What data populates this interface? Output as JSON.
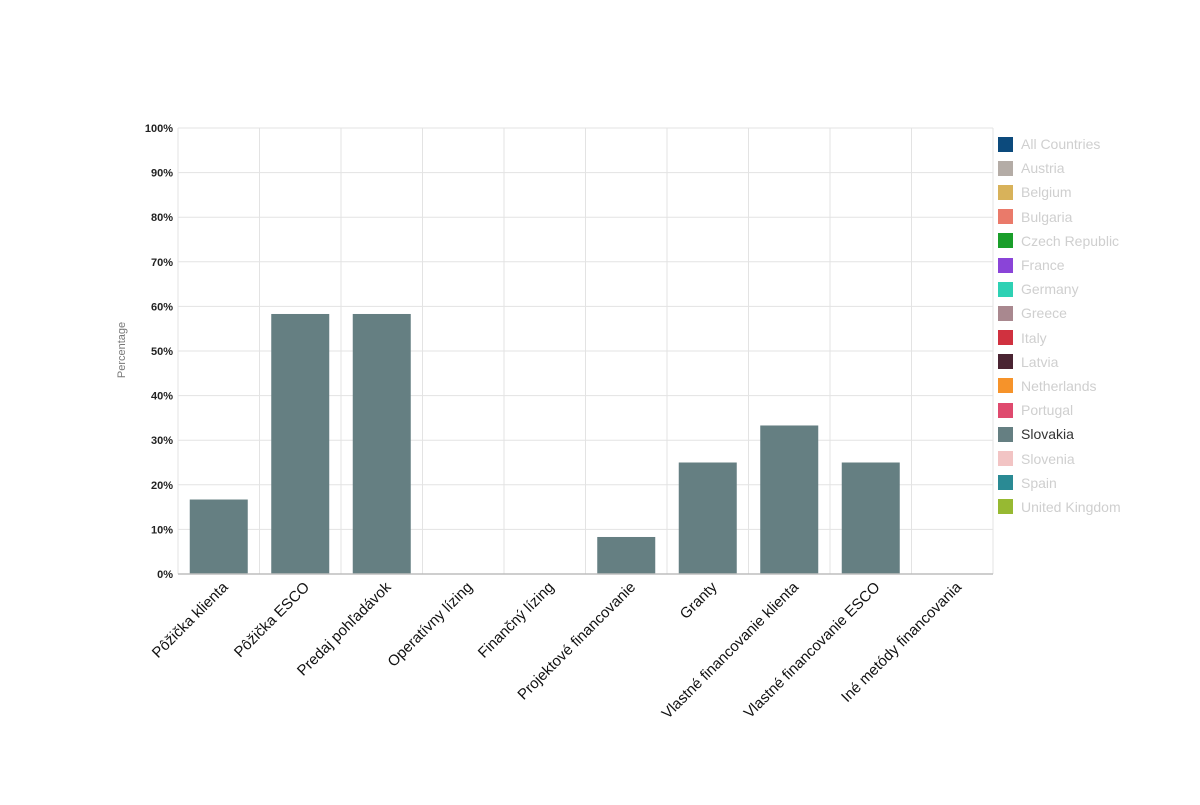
{
  "chart_data": {
    "type": "bar",
    "ylabel": "Percentage",
    "ylim": [
      0,
      100
    ],
    "y_ticks": [
      "0%",
      "10%",
      "20%",
      "30%",
      "40%",
      "50%",
      "60%",
      "70%",
      "80%",
      "90%",
      "100%"
    ],
    "grid": true,
    "legend_position": "right",
    "categories": [
      "Pôžička klienta",
      "Pôžička ESCO",
      "Predaj pohľadávok",
      "Operatívny lízing",
      "Finančný lízing",
      "Projektové financovanie",
      "Granty",
      "Vlastné financovanie klienta",
      "Vlastné financovanie ESCO",
      "Iné metódy financovania"
    ],
    "series": [
      {
        "name": "Slovakia",
        "color": "#657f82",
        "values": [
          16.7,
          58.3,
          58.3,
          0,
          0,
          8.3,
          25,
          33.3,
          25,
          0
        ]
      }
    ],
    "legend": [
      {
        "name": "All Countries",
        "color": "#0c4a7c",
        "active": false
      },
      {
        "name": "Austria",
        "color": "#b4aca6",
        "active": false
      },
      {
        "name": "Belgium",
        "color": "#d8b25a",
        "active": false
      },
      {
        "name": "Bulgaria",
        "color": "#ea7a6a",
        "active": false
      },
      {
        "name": "Czech Republic",
        "color": "#1a9e2a",
        "active": false
      },
      {
        "name": "France",
        "color": "#8a44d8",
        "active": false
      },
      {
        "name": "Germany",
        "color": "#2ed1b4",
        "active": false
      },
      {
        "name": "Greece",
        "color": "#a9888f",
        "active": false
      },
      {
        "name": "Italy",
        "color": "#d0313f",
        "active": false
      },
      {
        "name": "Latvia",
        "color": "#4a2432",
        "active": false
      },
      {
        "name": "Netherlands",
        "color": "#f6932a",
        "active": false
      },
      {
        "name": "Portugal",
        "color": "#df4a6e",
        "active": false
      },
      {
        "name": "Slovakia",
        "color": "#657f82",
        "active": true
      },
      {
        "name": "Slovenia",
        "color": "#f2c4c4",
        "active": false
      },
      {
        "name": "Spain",
        "color": "#2a8a94",
        "active": false
      },
      {
        "name": "United Kingdom",
        "color": "#97b932",
        "active": false
      }
    ]
  }
}
